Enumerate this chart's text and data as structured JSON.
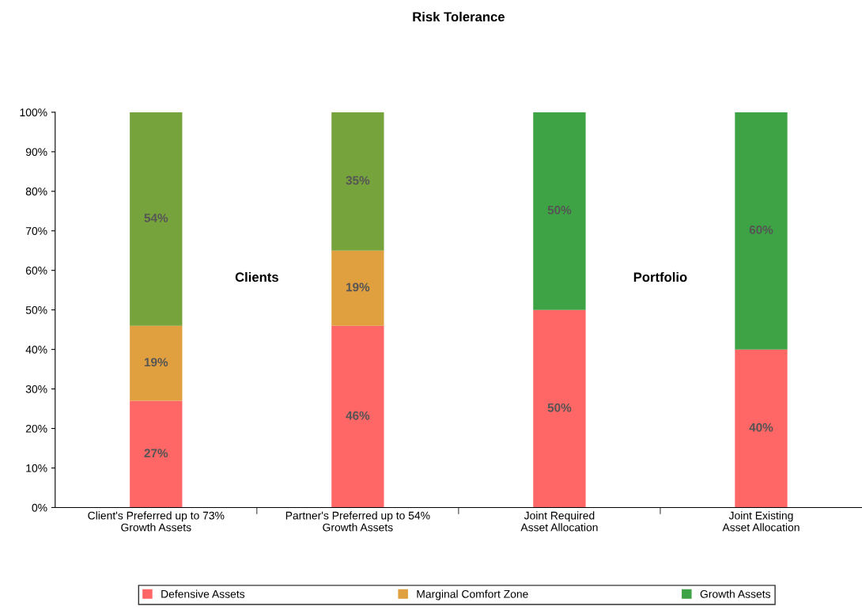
{
  "chart_data": {
    "type": "bar",
    "stacked": true,
    "title": "Risk Tolerance",
    "categories": [
      "Client's Preferred up to 73%\nGrowth Assets",
      "Partner's Preferred up to 54%\nGrowth Assets",
      "Joint Required\nAsset Allocation",
      "Joint Existing\nAsset Allocation"
    ],
    "series": [
      {
        "name": "Defensive Assets",
        "color": "#ff6666",
        "values": [
          27,
          46,
          50,
          40
        ],
        "value_labels": [
          "27%",
          "46%",
          "50%",
          "40%"
        ]
      },
      {
        "name": "Marginal Comfort Zone",
        "color": "#e0a040",
        "values": [
          19,
          19,
          0,
          0
        ],
        "value_labels": [
          "19%",
          "19%",
          null,
          null
        ]
      },
      {
        "name": "Growth Assets",
        "color": "#3ea344",
        "colors": [
          "#77a33d",
          "#77a33d",
          "#3ea344",
          "#3ea344"
        ],
        "values": [
          54,
          35,
          50,
          60
        ],
        "value_labels": [
          "54%",
          "35%",
          "50%",
          "60%"
        ]
      }
    ],
    "ylim": [
      0,
      100
    ],
    "yticks": [
      {
        "value": 0,
        "label": "0%"
      },
      {
        "value": 10,
        "label": "10%"
      },
      {
        "value": 20,
        "label": "20%"
      },
      {
        "value": 30,
        "label": "30%"
      },
      {
        "value": 40,
        "label": "40%"
      },
      {
        "value": 50,
        "label": "50%"
      },
      {
        "value": 60,
        "label": "60%"
      },
      {
        "value": 70,
        "label": "70%"
      },
      {
        "value": 80,
        "label": "80%"
      },
      {
        "value": 90,
        "label": "90%"
      },
      {
        "value": 100,
        "label": "100%"
      }
    ],
    "annotations": [
      "Clients",
      "Portfolio"
    ],
    "grid": false,
    "legend": "bottom"
  }
}
